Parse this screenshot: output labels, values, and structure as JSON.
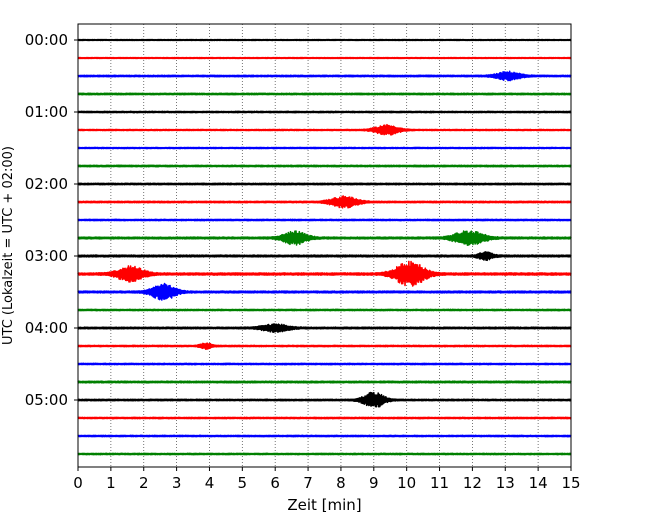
{
  "chart_data": {
    "type": "line",
    "title": "",
    "xlabel": "Zeit  [min]",
    "ylabel": "UTC (Lokalzeit = UTC + 02:00)",
    "xlim": [
      0,
      15
    ],
    "x_ticks": [
      "0",
      "1",
      "2",
      "3",
      "4",
      "5",
      "6",
      "7",
      "8",
      "9",
      "10",
      "11",
      "12",
      "13",
      "14",
      "15"
    ],
    "y_tick_labels": [
      {
        "label": "00:00",
        "row": 0
      },
      {
        "label": "01:00",
        "row": 4
      },
      {
        "label": "02:00",
        "row": 8
      },
      {
        "label": "03:00",
        "row": 12
      },
      {
        "label": "04:00",
        "row": 16
      },
      {
        "label": "05:00",
        "row": 20
      }
    ],
    "row_interval_minutes": 15,
    "colors": [
      "#000000",
      "#ff0000",
      "#0000ff",
      "#008000"
    ],
    "grid": "vertical dotted",
    "traces": [
      {
        "start": "00:00",
        "color": "#000000",
        "noise": 0.05,
        "events": []
      },
      {
        "start": "00:15",
        "color": "#ff0000",
        "noise": 0.05,
        "events": []
      },
      {
        "start": "00:30",
        "color": "#0000ff",
        "noise": 0.08,
        "events": [
          {
            "t": 13.1,
            "amp": 0.45,
            "width": 0.8
          }
        ]
      },
      {
        "start": "00:45",
        "color": "#008000",
        "noise": 0.08,
        "events": []
      },
      {
        "start": "01:00",
        "color": "#000000",
        "noise": 0.07,
        "events": []
      },
      {
        "start": "01:15",
        "color": "#ff0000",
        "noise": 0.06,
        "events": [
          {
            "t": 9.4,
            "amp": 0.55,
            "width": 0.8
          }
        ]
      },
      {
        "start": "01:30",
        "color": "#0000ff",
        "noise": 0.06,
        "events": []
      },
      {
        "start": "01:45",
        "color": "#008000",
        "noise": 0.08,
        "events": []
      },
      {
        "start": "02:00",
        "color": "#000000",
        "noise": 0.08,
        "events": []
      },
      {
        "start": "02:15",
        "color": "#ff0000",
        "noise": 0.08,
        "events": [
          {
            "t": 8.1,
            "amp": 0.6,
            "width": 0.9
          }
        ]
      },
      {
        "start": "02:30",
        "color": "#0000ff",
        "noise": 0.07,
        "events": []
      },
      {
        "start": "02:45",
        "color": "#008000",
        "noise": 0.1,
        "events": [
          {
            "t": 6.6,
            "amp": 0.7,
            "width": 0.8
          },
          {
            "t": 11.9,
            "amp": 0.8,
            "width": 1.0
          }
        ]
      },
      {
        "start": "03:00",
        "color": "#000000",
        "noise": 0.1,
        "events": [
          {
            "t": 12.4,
            "amp": 0.4,
            "width": 0.5
          }
        ]
      },
      {
        "start": "03:15",
        "color": "#ff0000",
        "noise": 0.12,
        "events": [
          {
            "t": 1.6,
            "amp": 0.8,
            "width": 0.9
          },
          {
            "t": 10.1,
            "amp": 1.3,
            "width": 1.0
          }
        ]
      },
      {
        "start": "03:30",
        "color": "#0000ff",
        "noise": 0.1,
        "events": [
          {
            "t": 2.6,
            "amp": 0.85,
            "width": 0.8
          }
        ]
      },
      {
        "start": "03:45",
        "color": "#008000",
        "noise": 0.07,
        "events": []
      },
      {
        "start": "04:00",
        "color": "#000000",
        "noise": 0.09,
        "events": [
          {
            "t": 6.0,
            "amp": 0.4,
            "width": 0.9
          }
        ]
      },
      {
        "start": "04:15",
        "color": "#ff0000",
        "noise": 0.07,
        "events": [
          {
            "t": 3.9,
            "amp": 0.3,
            "width": 0.4
          }
        ]
      },
      {
        "start": "04:30",
        "color": "#0000ff",
        "noise": 0.07,
        "events": []
      },
      {
        "start": "04:45",
        "color": "#008000",
        "noise": 0.09,
        "events": []
      },
      {
        "start": "05:00",
        "color": "#000000",
        "noise": 0.08,
        "events": [
          {
            "t": 9.0,
            "amp": 0.85,
            "width": 0.7
          }
        ]
      },
      {
        "start": "05:15",
        "color": "#ff0000",
        "noise": 0.07,
        "events": []
      },
      {
        "start": "05:30",
        "color": "#0000ff",
        "noise": 0.07,
        "events": []
      },
      {
        "start": "05:45",
        "color": "#008000",
        "noise": 0.07,
        "events": []
      }
    ]
  }
}
